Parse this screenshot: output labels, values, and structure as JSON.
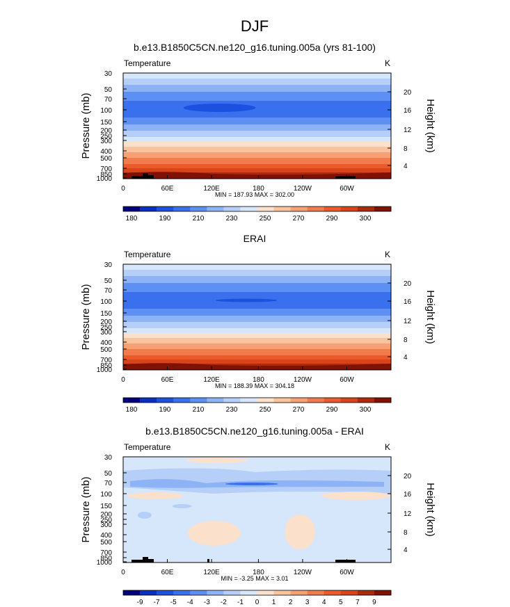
{
  "figure": {
    "title": "DJF"
  },
  "chart_data": [
    {
      "type": "heatmap",
      "title": "b.e13.B1850C5CN.ne120_g16.tuning.005a (yrs 81-100)",
      "variable": "Temperature",
      "units": "K",
      "ylabel": "Pressure (mb)",
      "ylabel_right": "Height (km)",
      "xticks": [
        "0",
        "60E",
        "120E",
        "180",
        "120W",
        "60W"
      ],
      "yticks": [
        "30",
        "50",
        "70",
        "100",
        "150",
        "200",
        "250",
        "300",
        "400",
        "500",
        "700",
        "850",
        "1000"
      ],
      "yticks_right": [
        "20",
        "16",
        "12",
        "8",
        "4"
      ],
      "stats": "MIN = 187.93  MAX = 302.00",
      "min": 187.93,
      "max": 302.0,
      "levels": [
        175,
        180,
        185,
        190,
        200,
        210,
        220,
        230,
        240,
        250,
        260,
        270,
        280,
        290,
        295,
        300
      ],
      "colorbar_labels": [
        "180",
        "190",
        "210",
        "230",
        "250",
        "270",
        "290",
        "300"
      ],
      "colors": [
        "#00007f",
        "#0a2fc0",
        "#1e50e0",
        "#3a6fee",
        "#5e90f4",
        "#8db2f6",
        "#b6cff8",
        "#d6e6fb",
        "#fbe0cc",
        "#f9c39e",
        "#f6a074",
        "#f27b4d",
        "#ea5a2a",
        "#d9441b",
        "#ad2a0e",
        "#7f1105"
      ],
      "ylim": [
        1000,
        30
      ]
    },
    {
      "type": "heatmap",
      "title": "ERAI",
      "variable": "Temperature",
      "units": "K",
      "ylabel": "Pressure (mb)",
      "ylabel_right": "Height (km)",
      "xticks": [
        "0",
        "60E",
        "120E",
        "180",
        "120W",
        "60W"
      ],
      "yticks": [
        "30",
        "50",
        "70",
        "100",
        "150",
        "200",
        "250",
        "300",
        "400",
        "500",
        "700",
        "850",
        "1000"
      ],
      "yticks_right": [
        "20",
        "16",
        "12",
        "8",
        "4"
      ],
      "stats": "MIN = 188.39  MAX = 304.18",
      "min": 188.39,
      "max": 304.18,
      "levels": [
        175,
        180,
        185,
        190,
        200,
        210,
        220,
        230,
        240,
        250,
        260,
        270,
        280,
        290,
        295,
        300
      ],
      "colorbar_labels": [
        "180",
        "190",
        "210",
        "230",
        "250",
        "270",
        "290",
        "300"
      ],
      "colors": [
        "#00007f",
        "#0a2fc0",
        "#1e50e0",
        "#3a6fee",
        "#5e90f4",
        "#8db2f6",
        "#b6cff8",
        "#d6e6fb",
        "#fbe0cc",
        "#f9c39e",
        "#f6a074",
        "#f27b4d",
        "#ea5a2a",
        "#d9441b",
        "#ad2a0e",
        "#7f1105"
      ],
      "ylim": [
        1000,
        30
      ]
    },
    {
      "type": "heatmap",
      "title": "b.e13.B1850C5CN.ne120_g16.tuning.005a - ERAI",
      "variable": "Temperature",
      "units": "K",
      "ylabel": "Pressure (mb)",
      "ylabel_right": "Height (km)",
      "xticks": [
        "0",
        "60E",
        "120E",
        "180",
        "120W",
        "60W"
      ],
      "yticks": [
        "30",
        "50",
        "70",
        "100",
        "150",
        "200",
        "250",
        "300",
        "400",
        "500",
        "700",
        "850",
        "1000"
      ],
      "yticks_right": [
        "20",
        "16",
        "12",
        "8",
        "4"
      ],
      "stats": "MIN = -3.25  MAX =  3.01",
      "min": -3.25,
      "max": 3.01,
      "levels": [
        -9,
        -7,
        -5,
        -4,
        -3,
        -2,
        -1,
        0,
        1,
        2,
        3,
        4,
        5,
        7,
        9
      ],
      "colorbar_labels": [
        "-9",
        "-7",
        "-5",
        "-4",
        "-3",
        "-2",
        "-1",
        "0",
        "1",
        "2",
        "3",
        "4",
        "5",
        "7",
        "9"
      ],
      "colors": [
        "#00007f",
        "#0a2fc0",
        "#1e50e0",
        "#3a6fee",
        "#5e90f4",
        "#8db2f6",
        "#b6cff8",
        "#d6e6fb",
        "#fbe0cc",
        "#f9c39e",
        "#f6a074",
        "#f27b4d",
        "#ea5a2a",
        "#d9441b",
        "#ad2a0e",
        "#7f1105"
      ],
      "ylim": [
        1000,
        30
      ]
    }
  ]
}
